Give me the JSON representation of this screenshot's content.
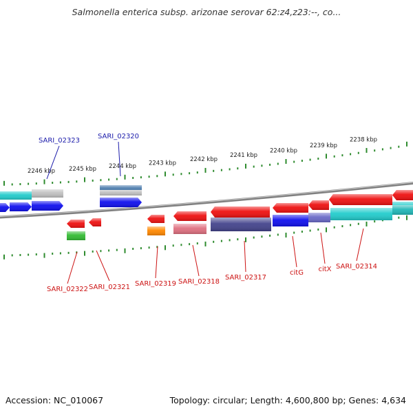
{
  "title": "Salmonella enterica subsp. arizonae serovar 62:z4,z23:--, co...",
  "footer": {
    "accession": "Accession: NC_010067",
    "summary": "Topology: circular; Length: 4,600,800 bp; Genes: 4,634"
  },
  "scale_labels": [
    "2246 kbp",
    "2245 kbp",
    "2244 kbp",
    "2243 kbp",
    "2242 kbp",
    "2241 kbp",
    "2240 kbp",
    "2239 kbp",
    "2238 kbp"
  ],
  "gene_labels": {
    "forward": [
      "SARI_02323",
      "SARI_02320"
    ],
    "reverse": [
      "SARI_02322",
      "SARI_02321",
      "SARI_02319",
      "SARI_02318",
      "SARI_02317",
      "citG",
      "citX",
      "SARI_02314"
    ]
  },
  "colors": {
    "forward_label": "#1a1aaa",
    "reverse_label": "#cc1111",
    "ticks": "#2e8b2e",
    "backbone": "#808080",
    "forward_gene": "#1010ee",
    "reverse_gene": "#ee1111",
    "rrna": "#22cccc",
    "pseudo": "#c0c0c0",
    "cog_orange": "#ff8800",
    "cog_green": "#33bb33",
    "cog_purple": "#44448c",
    "cog_pink": "#e07080",
    "cog_steel": "#4f7fb0"
  }
}
